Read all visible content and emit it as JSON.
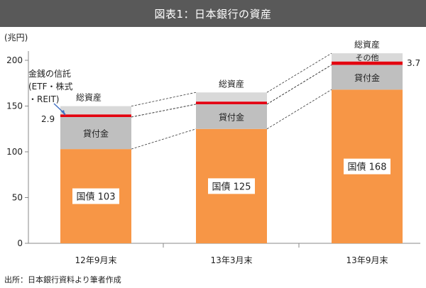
{
  "chart_data": {
    "type": "bar",
    "title": "図表1：日本銀行の資産",
    "ylabel": "(兆円)",
    "ylim": [
      0,
      200
    ],
    "yticks": [
      0,
      50,
      100,
      150,
      200
    ],
    "categories": [
      "12年9月末",
      "13年3月末",
      "13年9月末"
    ],
    "series": [
      {
        "name": "国債",
        "values": [
          103,
          125,
          168
        ],
        "color": "#F79646",
        "labels": [
          "国債 103",
          "国債 125",
          "国債 168"
        ]
      },
      {
        "name": "貸付金",
        "values": [
          35,
          27,
          27
        ],
        "color": "#BFBFBF",
        "labels": [
          "貸付金",
          "貸付金",
          "貸付金"
        ]
      },
      {
        "name": "金銭の信託",
        "values": [
          2.9,
          2.9,
          3.7
        ],
        "color": "#E3000F"
      },
      {
        "name": "その他",
        "values": [
          9,
          10,
          9
        ],
        "color": "#D9D9D9",
        "labels": [
          "",
          "",
          "その他"
        ]
      }
    ],
    "totals": [
      150,
      165,
      208
    ],
    "total_label": "総資産",
    "annotations": {
      "trust_callout": [
        "金銭の信託",
        "(ETF・株式",
        "・REIT)"
      ],
      "trust_value_first": "2.9",
      "trust_value_last": "3.7"
    },
    "grid": false
  },
  "source": "出所：日本銀行資料より筆者作成"
}
